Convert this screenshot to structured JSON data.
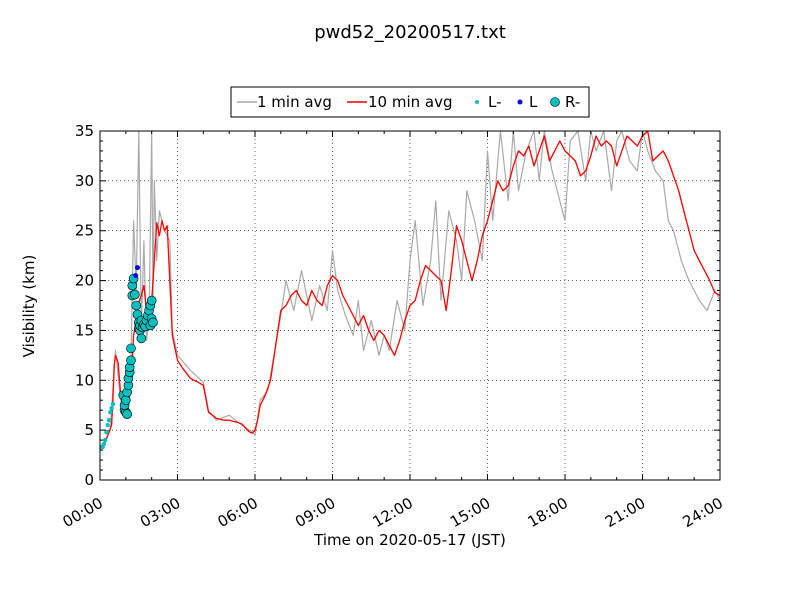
{
  "chart_data": {
    "type": "line",
    "title": "pwd52_20200517.txt",
    "xlabel": "Time on 2020-05-17 (JST)",
    "ylabel": "Visibility (km)",
    "xlim_hours": [
      0,
      24
    ],
    "ylim": [
      0,
      35
    ],
    "grid": true,
    "legend_placement": "top-center (above plot)",
    "x_tick_labels": [
      "00:00",
      "03:00",
      "06:00",
      "09:00",
      "12:00",
      "15:00",
      "18:00",
      "21:00",
      "24:00"
    ],
    "y_tick_labels": [
      "0",
      "5",
      "10",
      "15",
      "20",
      "25",
      "30",
      "35"
    ],
    "legend": [
      {
        "label": "1 min avg",
        "kind": "line",
        "color": "#a9a9a9"
      },
      {
        "label": "10 min avg",
        "kind": "line",
        "color": "#ff0000"
      },
      {
        "label": "L-",
        "kind": "dot-small",
        "color": "#00bfbf"
      },
      {
        "label": "L",
        "kind": "dot-small",
        "color": "#0000ff"
      },
      {
        "label": "R-",
        "kind": "dot-large",
        "color": "#00bfbf"
      }
    ],
    "series": [
      {
        "name": "10 min avg",
        "color": "#ff0000",
        "x_hours": [
          0.0,
          0.2,
          0.35,
          0.45,
          0.5,
          0.55,
          0.6,
          0.7,
          0.8,
          0.9,
          1.0,
          1.1,
          1.2,
          1.3,
          1.4,
          1.5,
          1.6,
          1.7,
          1.8,
          1.9,
          2.0,
          2.1,
          2.2,
          2.3,
          2.4,
          2.5,
          2.6,
          2.7,
          2.8,
          3.0,
          3.2,
          3.5,
          3.8,
          4.0,
          4.2,
          4.5,
          4.8,
          5.0,
          5.3,
          5.5,
          5.7,
          5.8,
          5.9,
          6.0,
          6.1,
          6.2,
          6.4,
          6.6,
          6.8,
          7.0,
          7.2,
          7.4,
          7.6,
          7.8,
          8.0,
          8.2,
          8.4,
          8.6,
          8.8,
          9.0,
          9.2,
          9.4,
          9.6,
          9.8,
          10.0,
          10.2,
          10.4,
          10.6,
          10.8,
          11.0,
          11.2,
          11.4,
          11.6,
          11.8,
          12.0,
          12.2,
          12.4,
          12.6,
          12.8,
          13.0,
          13.2,
          13.4,
          13.6,
          13.8,
          14.0,
          14.2,
          14.4,
          14.6,
          14.8,
          15.0,
          15.2,
          15.4,
          15.6,
          15.8,
          16.0,
          16.2,
          16.4,
          16.6,
          16.8,
          17.0,
          17.2,
          17.4,
          17.6,
          17.8,
          18.0,
          18.2,
          18.4,
          18.6,
          18.8,
          19.0,
          19.2,
          19.4,
          19.6,
          19.8,
          20.0,
          20.2,
          20.4,
          20.6,
          20.8,
          21.0,
          21.2,
          21.4,
          21.6,
          21.8,
          22.0,
          22.2,
          22.4,
          22.6,
          22.8,
          23.0,
          23.2,
          23.4,
          23.6,
          23.8,
          24.0
        ],
        "values": [
          3.3,
          3.8,
          4.8,
          5.5,
          8.0,
          11.5,
          12.5,
          11.8,
          8.5,
          7.2,
          6.8,
          7.5,
          9.5,
          14.5,
          16.0,
          17.8,
          18.5,
          19.5,
          17.0,
          16.0,
          18.0,
          22.0,
          25.8,
          24.5,
          26.0,
          25.0,
          25.5,
          20.0,
          14.5,
          12.0,
          11.2,
          10.2,
          9.8,
          9.5,
          6.8,
          6.2,
          6.0,
          6.0,
          5.8,
          5.6,
          5.0,
          4.8,
          4.7,
          5.0,
          6.0,
          7.5,
          8.5,
          10.0,
          13.5,
          17.0,
          17.5,
          18.5,
          19.0,
          18.0,
          17.5,
          19.0,
          18.0,
          17.5,
          19.5,
          20.5,
          20.0,
          18.5,
          17.5,
          16.5,
          15.5,
          16.5,
          15.0,
          14.0,
          15.0,
          14.5,
          13.5,
          12.5,
          14.0,
          16.0,
          17.5,
          18.0,
          20.0,
          21.5,
          21.0,
          20.5,
          20.0,
          17.0,
          21.0,
          25.5,
          24.0,
          22.0,
          20.0,
          22.0,
          24.5,
          26.0,
          28.0,
          30.0,
          29.0,
          29.5,
          31.5,
          33.0,
          32.5,
          33.5,
          31.5,
          33.0,
          34.5,
          32.0,
          33.0,
          34.0,
          33.0,
          32.5,
          32.0,
          30.5,
          31.0,
          32.5,
          34.5,
          33.5,
          34.0,
          33.5,
          31.5,
          33.0,
          34.5,
          34.0,
          33.5,
          34.5,
          35.0,
          32.0,
          32.5,
          33.0,
          32.0,
          30.5,
          29.0,
          27.0,
          25.0,
          23.0,
          22.0,
          21.0,
          20.0,
          18.8,
          18.5
        ]
      },
      {
        "name": "1 min avg",
        "color": "#a9a9a9",
        "x_hours": [
          0.0,
          0.2,
          0.4,
          0.5,
          0.6,
          0.8,
          1.0,
          1.2,
          1.3,
          1.4,
          1.5,
          1.6,
          1.7,
          1.8,
          1.9,
          2.0,
          2.05,
          2.1,
          2.2,
          2.3,
          2.5,
          2.7,
          2.8,
          3.0,
          3.5,
          4.0,
          4.2,
          4.5,
          5.0,
          5.5,
          5.8,
          6.0,
          6.2,
          6.5,
          7.0,
          7.2,
          7.5,
          7.8,
          8.0,
          8.2,
          8.5,
          8.8,
          9.0,
          9.2,
          9.5,
          9.8,
          10.0,
          10.2,
          10.5,
          10.8,
          11.0,
          11.2,
          11.5,
          11.8,
          12.0,
          12.2,
          12.5,
          12.8,
          13.0,
          13.2,
          13.5,
          13.8,
          14.0,
          14.2,
          14.5,
          14.8,
          15.0,
          15.2,
          15.5,
          15.8,
          16.0,
          16.2,
          16.5,
          16.8,
          17.0,
          17.2,
          17.5,
          17.8,
          18.0,
          18.2,
          18.5,
          18.8,
          19.0,
          19.2,
          19.5,
          19.8,
          20.0,
          20.2,
          20.5,
          20.8,
          21.0,
          21.2,
          21.5,
          21.8,
          22.0,
          22.2,
          22.5,
          22.8,
          23.0,
          23.2,
          23.5,
          23.8,
          24.0
        ],
        "values": [
          3.0,
          4.0,
          5.0,
          9.0,
          13.0,
          8.0,
          7.0,
          12.0,
          26.0,
          19.0,
          35.0,
          15.0,
          24.0,
          14.0,
          16.0,
          35.0,
          18.0,
          30.0,
          22.0,
          27.0,
          25.0,
          24.0,
          15.0,
          12.5,
          11.0,
          9.8,
          7.0,
          6.0,
          6.5,
          5.5,
          5.0,
          4.5,
          8.0,
          9.0,
          16.5,
          20.0,
          17.0,
          21.0,
          18.5,
          16.0,
          19.5,
          17.0,
          23.0,
          19.0,
          16.5,
          14.5,
          18.0,
          13.0,
          16.0,
          12.5,
          14.5,
          13.0,
          18.0,
          15.0,
          22.0,
          26.0,
          17.5,
          22.0,
          28.0,
          18.0,
          27.0,
          24.0,
          20.0,
          29.0,
          26.0,
          22.0,
          33.0,
          26.0,
          35.0,
          28.0,
          35.0,
          29.0,
          33.0,
          35.0,
          30.0,
          35.0,
          31.0,
          28.0,
          26.0,
          34.0,
          35.0,
          30.0,
          35.0,
          33.0,
          35.0,
          29.0,
          34.0,
          35.0,
          32.0,
          31.0,
          35.0,
          33.0,
          31.0,
          30.0,
          26.0,
          25.0,
          22.0,
          20.0,
          19.0,
          18.0,
          17.0,
          19.0,
          18.0
        ]
      },
      {
        "name": "L-",
        "color": "#00bfbf",
        "x_hours": [
          0.1,
          0.15,
          0.2,
          0.25,
          0.3,
          0.35,
          0.4,
          0.45,
          0.5
        ],
        "values": [
          3.3,
          3.6,
          4.0,
          4.8,
          5.5,
          6.0,
          6.8,
          7.2,
          7.6
        ]
      },
      {
        "name": "L",
        "color": "#0000ff",
        "x_hours": [
          1.38,
          1.45
        ],
        "values": [
          20.5,
          21.3
        ]
      },
      {
        "name": "R-",
        "color": "#00bfbf",
        "x_hours": [
          0.9,
          0.95,
          1.0,
          1.05,
          0.95,
          1.0,
          1.05,
          1.1,
          1.1,
          1.15,
          1.15,
          1.2,
          1.2,
          1.25,
          1.25,
          1.3,
          1.35,
          1.4,
          1.45,
          1.5,
          1.5,
          1.55,
          1.55,
          1.6,
          1.6,
          1.65,
          1.7,
          1.75,
          1.8,
          1.85,
          1.9,
          1.95,
          1.95,
          2.0,
          2.0,
          2.05
        ],
        "values": [
          8.5,
          7.0,
          6.8,
          6.6,
          7.5,
          8.0,
          8.8,
          9.5,
          10.2,
          10.8,
          11.3,
          12.0,
          13.2,
          18.5,
          19.5,
          20.2,
          18.6,
          17.5,
          16.6,
          15.8,
          15.2,
          15.0,
          15.5,
          14.2,
          16.0,
          15.3,
          15.6,
          15.4,
          16.0,
          16.5,
          17.0,
          17.5,
          15.5,
          16.2,
          18.0,
          15.8
        ]
      }
    ]
  }
}
